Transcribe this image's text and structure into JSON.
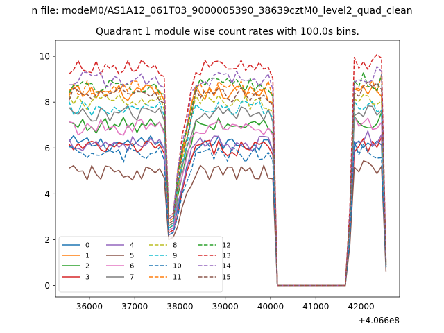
{
  "figure": {
    "suptitle": "n file: modeM0/AS1A12_061T03_9000005390_38639cztM0_level2_quad_clean",
    "title": "Quadrant 1 module wise count rates with 100.0s bins.",
    "offset_text": "+4.066e8"
  },
  "chart_data": {
    "type": "line",
    "title": "Quadrant 1 module wise count rates with 100.0s bins.",
    "xlabel": "",
    "ylabel": "",
    "x_offset": 406600000,
    "xlim": [
      35250,
      42850
    ],
    "ylim": [
      -0.5,
      10.7
    ],
    "xticks": [
      36000,
      37000,
      38000,
      39000,
      40000,
      41000,
      42000
    ],
    "yticks": [
      0,
      2,
      4,
      6,
      8,
      10
    ],
    "xtick_labels": [
      "36000",
      "37000",
      "38000",
      "39000",
      "40000",
      "41000",
      "42000"
    ],
    "ytick_labels": [
      "0",
      "2",
      "4",
      "6",
      "8",
      "10"
    ],
    "grid": false,
    "legend_position": "lower-left",
    "segments": [
      {
        "x_start": 35550,
        "x_end": 37650,
        "step": 100
      },
      {
        "x_start": 37650,
        "x_end": 37850,
        "step": 100
      },
      {
        "x_start": 37850,
        "x_end": 40050,
        "step": 100
      },
      {
        "x_start": 40050,
        "x_end": 40150,
        "step": 100
      },
      {
        "x_start": 40150,
        "x_end": 41650,
        "step": 100
      },
      {
        "x_start": 41650,
        "x_end": 41850,
        "step": 100
      },
      {
        "x_start": 41850,
        "x_end": 42550,
        "step": 100
      }
    ],
    "series": [
      {
        "name": "0",
        "color": "#1f77b4",
        "dash": "solid",
        "level": 6.2,
        "trough": 2.4,
        "end": 1.0
      },
      {
        "name": "1",
        "color": "#ff7f0e",
        "dash": "solid",
        "level": 8.4,
        "trough": 2.6,
        "end": 0.9
      },
      {
        "name": "2",
        "color": "#2ca02c",
        "dash": "solid",
        "level": 7.0,
        "trough": 2.5,
        "end": 0.8
      },
      {
        "name": "3",
        "color": "#d62728",
        "dash": "solid",
        "level": 6.0,
        "trough": 2.3,
        "end": 0.9
      },
      {
        "name": "4",
        "color": "#9467bd",
        "dash": "solid",
        "level": 6.2,
        "trough": 2.2,
        "end": 0.8
      },
      {
        "name": "5",
        "color": "#8c564b",
        "dash": "solid",
        "level": 4.9,
        "trough": 2.0,
        "end": 0.6
      },
      {
        "name": "6",
        "color": "#e377c2",
        "dash": "solid",
        "level": 6.9,
        "trough": 2.4,
        "end": 0.9
      },
      {
        "name": "7",
        "color": "#7f7f7f",
        "dash": "solid",
        "level": 7.5,
        "trough": 2.6,
        "end": 0.9
      },
      {
        "name": "8",
        "color": "#bcbd22",
        "dash": "dashed",
        "level": 8.0,
        "trough": 2.7,
        "end": 1.0
      },
      {
        "name": "9",
        "color": "#17becf",
        "dash": "dashed",
        "level": 7.7,
        "trough": 2.5,
        "end": 0.9
      },
      {
        "name": "10",
        "color": "#1f77b4",
        "dash": "dashed",
        "level": 5.7,
        "trough": 2.2,
        "end": 0.8
      },
      {
        "name": "11",
        "color": "#ff7f0e",
        "dash": "dashed",
        "level": 8.6,
        "trough": 2.8,
        "end": 1.0
      },
      {
        "name": "12",
        "color": "#2ca02c",
        "dash": "dashed",
        "level": 8.7,
        "trough": 2.9,
        "end": 1.0
      },
      {
        "name": "13",
        "color": "#d62728",
        "dash": "dashed",
        "level": 9.5,
        "trough": 3.0,
        "end": 1.1
      },
      {
        "name": "14",
        "color": "#9467bd",
        "dash": "dashed",
        "level": 9.0,
        "trough": 2.9,
        "end": 1.0
      },
      {
        "name": "15",
        "color": "#8c564b",
        "dash": "dashed",
        "level": 8.3,
        "trough": 2.7,
        "end": 0.9
      }
    ]
  }
}
